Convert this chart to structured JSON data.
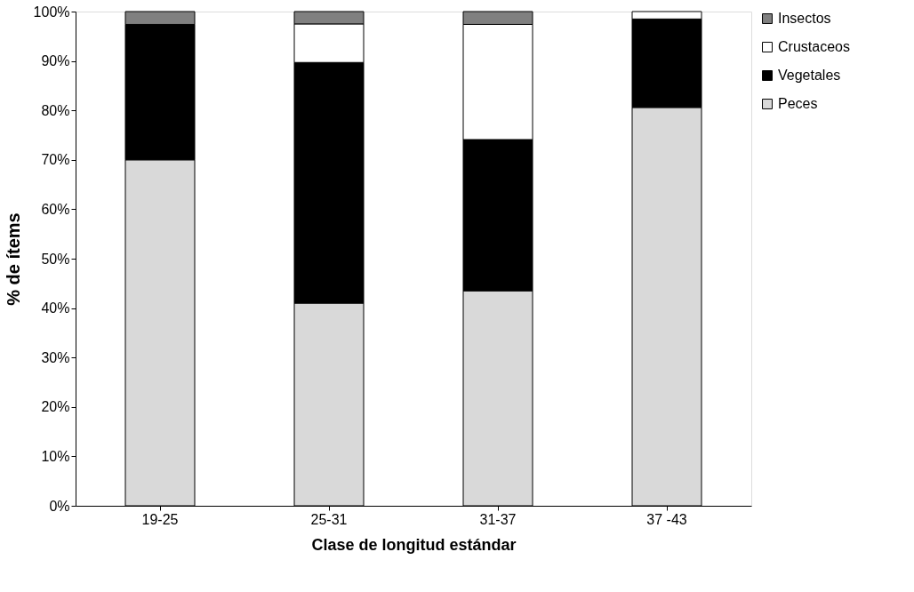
{
  "chart_data": {
    "type": "bar",
    "stacked": true,
    "xlabel": "Clase de longitud estándar",
    "ylabel": "% de ítems",
    "categories": [
      "19-25",
      "25-31",
      "31-37",
      "37 -43"
    ],
    "series": [
      {
        "name": "Peces",
        "color": "#d9d9d9",
        "values": [
          70,
          41,
          43.5,
          80.6
        ]
      },
      {
        "name": "Vegetales",
        "color": "#000000",
        "values": [
          27.4,
          48.7,
          30.6,
          17.9
        ]
      },
      {
        "name": "Crustaceos",
        "color": "#ffffff",
        "values": [
          0,
          7.8,
          23.3,
          1.5
        ]
      },
      {
        "name": "Insectos",
        "color": "#808080",
        "values": [
          2.6,
          2.5,
          2.6,
          0
        ]
      }
    ],
    "ylim": [
      0,
      100
    ],
    "yticks": [
      {
        "value": 0,
        "label": "0%"
      },
      {
        "value": 10,
        "label": "10%"
      },
      {
        "value": 20,
        "label": "20%"
      },
      {
        "value": 30,
        "label": "30%"
      },
      {
        "value": 40,
        "label": "40%"
      },
      {
        "value": 50,
        "label": "50%"
      },
      {
        "value": 60,
        "label": "60%"
      },
      {
        "value": 70,
        "label": "70%"
      },
      {
        "value": 80,
        "label": "80%"
      },
      {
        "value": 90,
        "label": "90%"
      },
      {
        "value": 100,
        "label": "100%"
      }
    ],
    "grid": false,
    "legend": "right"
  }
}
